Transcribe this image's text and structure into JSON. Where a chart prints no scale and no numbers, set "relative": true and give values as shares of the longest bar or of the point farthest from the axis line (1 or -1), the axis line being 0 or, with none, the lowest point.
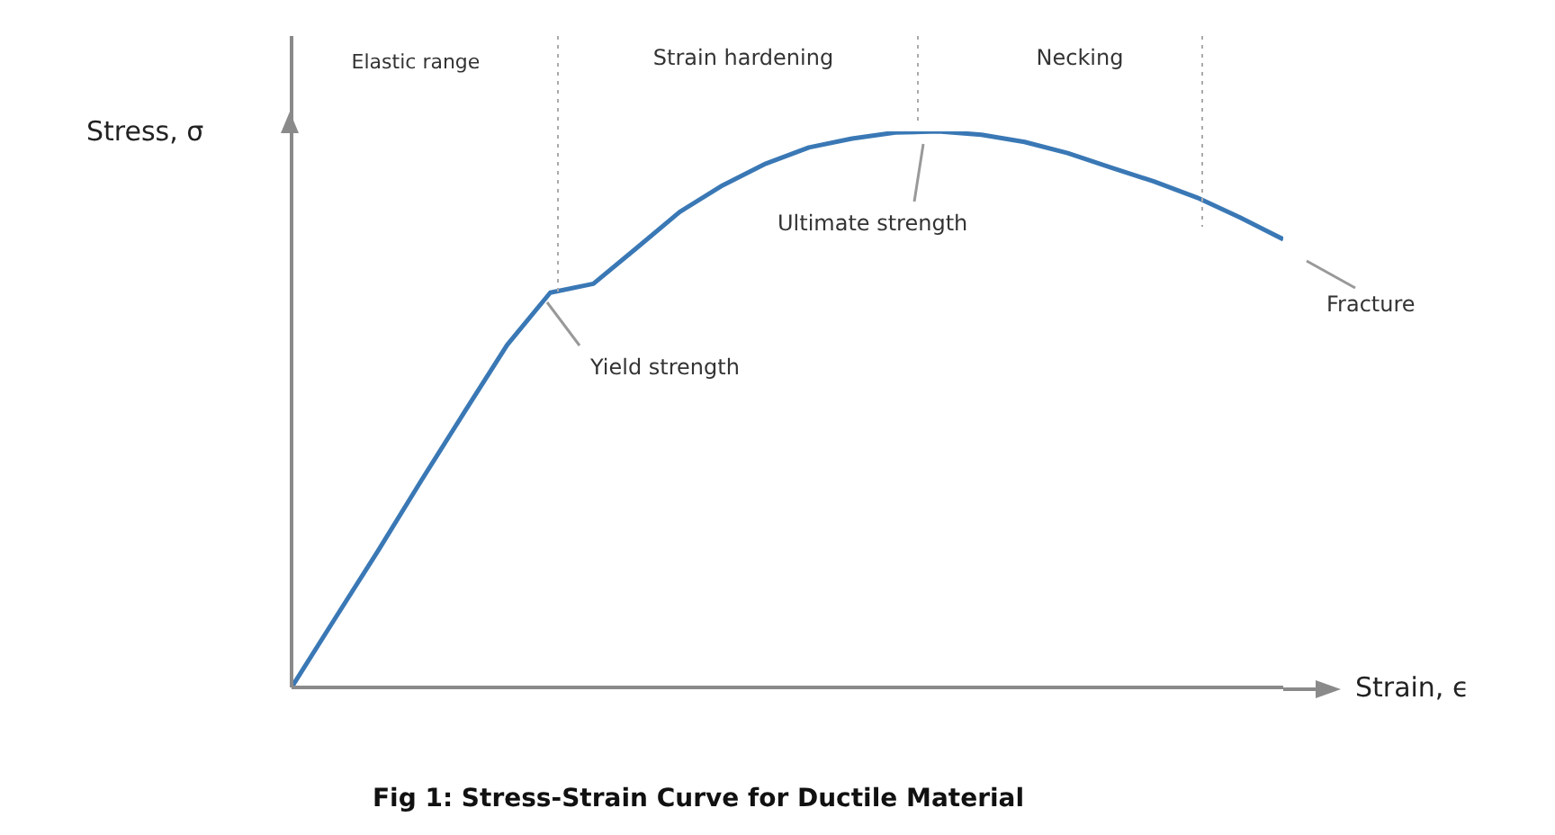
{
  "chart_data": {
    "type": "line",
    "relative": true,
    "xlabel": "Strain, ϵ",
    "ylabel": "Stress, σ",
    "legend": false,
    "grid": false,
    "marker": "none",
    "tick_labels": false,
    "categories": [
      null,
      null,
      null,
      null,
      null,
      null,
      null,
      null,
      null,
      null,
      null,
      null,
      null,
      null,
      null,
      null,
      null,
      null,
      null,
      null,
      null,
      null,
      null,
      null
    ],
    "series": [
      {
        "color": "#3a78b5",
        "values": [
          0,
          0.123,
          0.245,
          0.371,
          0.494,
          0.616,
          0.71,
          0.726,
          0.79,
          0.855,
          0.903,
          0.942,
          0.971,
          0.987,
          0.998,
          1,
          0.994,
          0.981,
          0.961,
          0.935,
          0.91,
          0.881,
          0.845,
          0.806
        ]
      }
    ],
    "annotations": [
      "Elastic range",
      "Strain hardening",
      "Necking",
      "Yield strength",
      "Ultimate strength",
      "Fracture",
      "Fig 1: Stress-Strain Curve for Ductile Material"
    ]
  }
}
